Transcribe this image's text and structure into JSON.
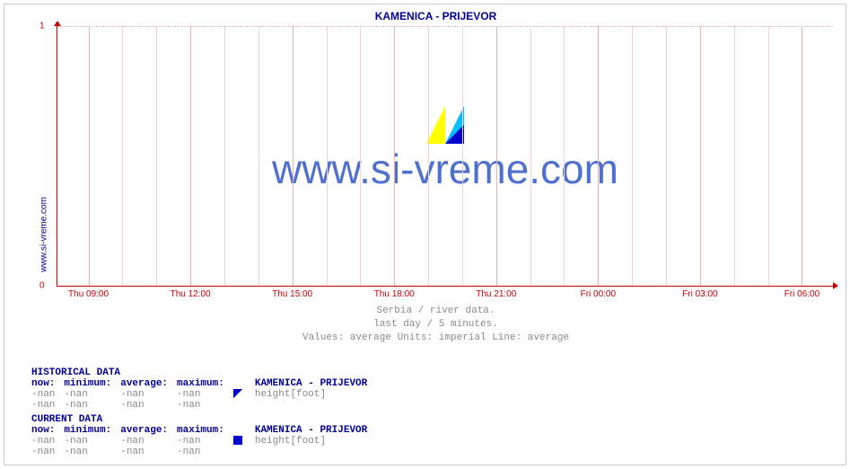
{
  "side_label": "www.si-vreme.com",
  "chart": {
    "type": "line",
    "title": "KAMENICA -  PRIJEVOR",
    "watermark": "www.si-vreme.com",
    "background_color": "#ffffff",
    "axis_color": "#cc0000",
    "grid_color_minor": "#f0d0d0",
    "grid_color_major": "#e8b0b0",
    "title_color": "#000099",
    "watermark_color": "#5070d0",
    "title_fontsize": 12,
    "watermark_fontsize": 46,
    "ylim": [
      0,
      1
    ],
    "yticks": [
      0,
      1
    ],
    "xticks": [
      "Thu 09:00",
      "Thu 12:00",
      "Thu 15:00",
      "Thu 18:00",
      "Thu 21:00",
      "Fri 00:00",
      "Fri 03:00",
      "Fri 06:00"
    ],
    "minor_per_major": 3,
    "series": [],
    "caption_lines": [
      "Serbia / river data.",
      "last day / 5 minutes.",
      "Values: average  Units: imperial  Line: average"
    ]
  },
  "sections": [
    {
      "title": "HISTORICAL DATA",
      "header": [
        "now:",
        "minimum:",
        "average:",
        "maximum:",
        "",
        "KAMENICA -  PRIJEVOR"
      ],
      "rows": [
        {
          "cells": [
            "-nan",
            "-nan",
            "-nan",
            "-nan"
          ],
          "swatch": "half",
          "swatch_color": "#0000cc",
          "label": "height[foot]"
        },
        {
          "cells": [
            "-nan",
            "-nan",
            "-nan",
            "-nan"
          ],
          "swatch": null,
          "label": ""
        }
      ]
    },
    {
      "title": "CURRENT DATA",
      "header": [
        "now:",
        "minimum:",
        "average:",
        "maximum:",
        "",
        "KAMENICA -  PRIJEVOR"
      ],
      "rows": [
        {
          "cells": [
            "-nan",
            "-nan",
            "-nan",
            "-nan"
          ],
          "swatch": "full",
          "swatch_color": "#0000cc",
          "label": "height[foot]"
        },
        {
          "cells": [
            "-nan",
            "-nan",
            "-nan",
            "-nan"
          ],
          "swatch": null,
          "label": ""
        }
      ]
    }
  ],
  "colors": {
    "text_muted": "#888888",
    "accent": "#000099"
  }
}
